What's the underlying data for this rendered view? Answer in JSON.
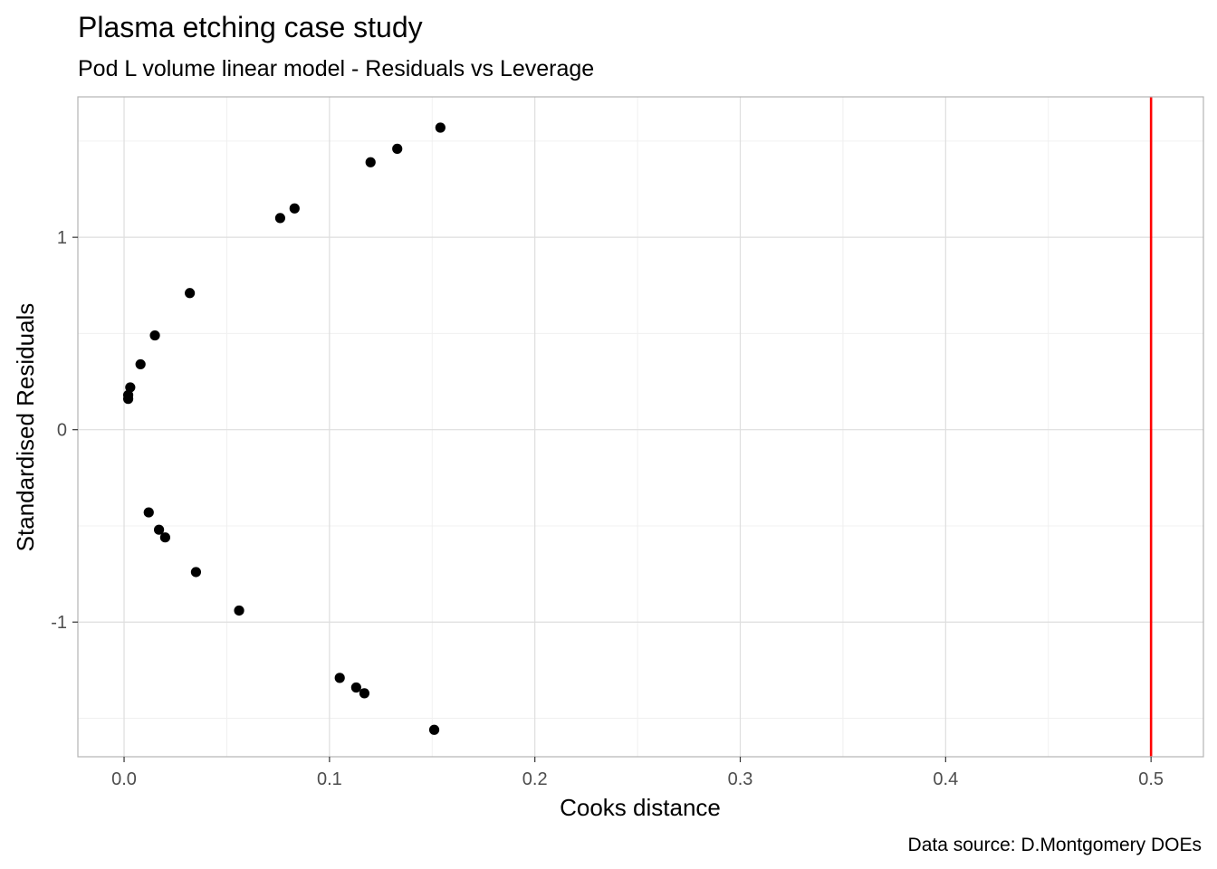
{
  "chart_data": {
    "type": "scatter",
    "title": "Plasma etching case study",
    "subtitle": "Pod L volume linear model - Residuals vs Leverage",
    "xlabel": "Cooks distance",
    "ylabel": "Standardised Residuals",
    "caption": "Data source: D.Montgomery DOEs",
    "xlim": [
      -0.0225,
      0.5255
    ],
    "ylim": [
      -1.7,
      1.73
    ],
    "x_ticks": [
      0.0,
      0.1,
      0.2,
      0.3,
      0.4,
      0.5
    ],
    "x_tick_labels": [
      "0.0",
      "0.1",
      "0.2",
      "0.3",
      "0.4",
      "0.5"
    ],
    "y_ticks": [
      -1,
      0,
      1
    ],
    "y_tick_labels": [
      "-1",
      "0",
      "1"
    ],
    "x_minor_ticks": [
      0.05,
      0.15,
      0.25,
      0.35,
      0.45
    ],
    "y_minor_ticks": [
      -1.5,
      -0.5,
      0.5,
      1.5
    ],
    "grid": true,
    "legend": "none",
    "point_color": "#000000",
    "reference_line": {
      "orientation": "vertical",
      "x": 0.5,
      "color": "#FF0000"
    },
    "points": [
      {
        "x": 0.154,
        "y": 1.57
      },
      {
        "x": 0.133,
        "y": 1.46
      },
      {
        "x": 0.12,
        "y": 1.39
      },
      {
        "x": 0.083,
        "y": 1.15
      },
      {
        "x": 0.076,
        "y": 1.1
      },
      {
        "x": 0.032,
        "y": 0.71
      },
      {
        "x": 0.015,
        "y": 0.49
      },
      {
        "x": 0.008,
        "y": 0.34
      },
      {
        "x": 0.003,
        "y": 0.22
      },
      {
        "x": 0.002,
        "y": 0.18
      },
      {
        "x": 0.002,
        "y": 0.16
      },
      {
        "x": 0.012,
        "y": -0.43
      },
      {
        "x": 0.017,
        "y": -0.52
      },
      {
        "x": 0.02,
        "y": -0.56
      },
      {
        "x": 0.035,
        "y": -0.74
      },
      {
        "x": 0.056,
        "y": -0.94
      },
      {
        "x": 0.105,
        "y": -1.29
      },
      {
        "x": 0.113,
        "y": -1.34
      },
      {
        "x": 0.117,
        "y": -1.37
      },
      {
        "x": 0.151,
        "y": -1.56
      }
    ]
  }
}
